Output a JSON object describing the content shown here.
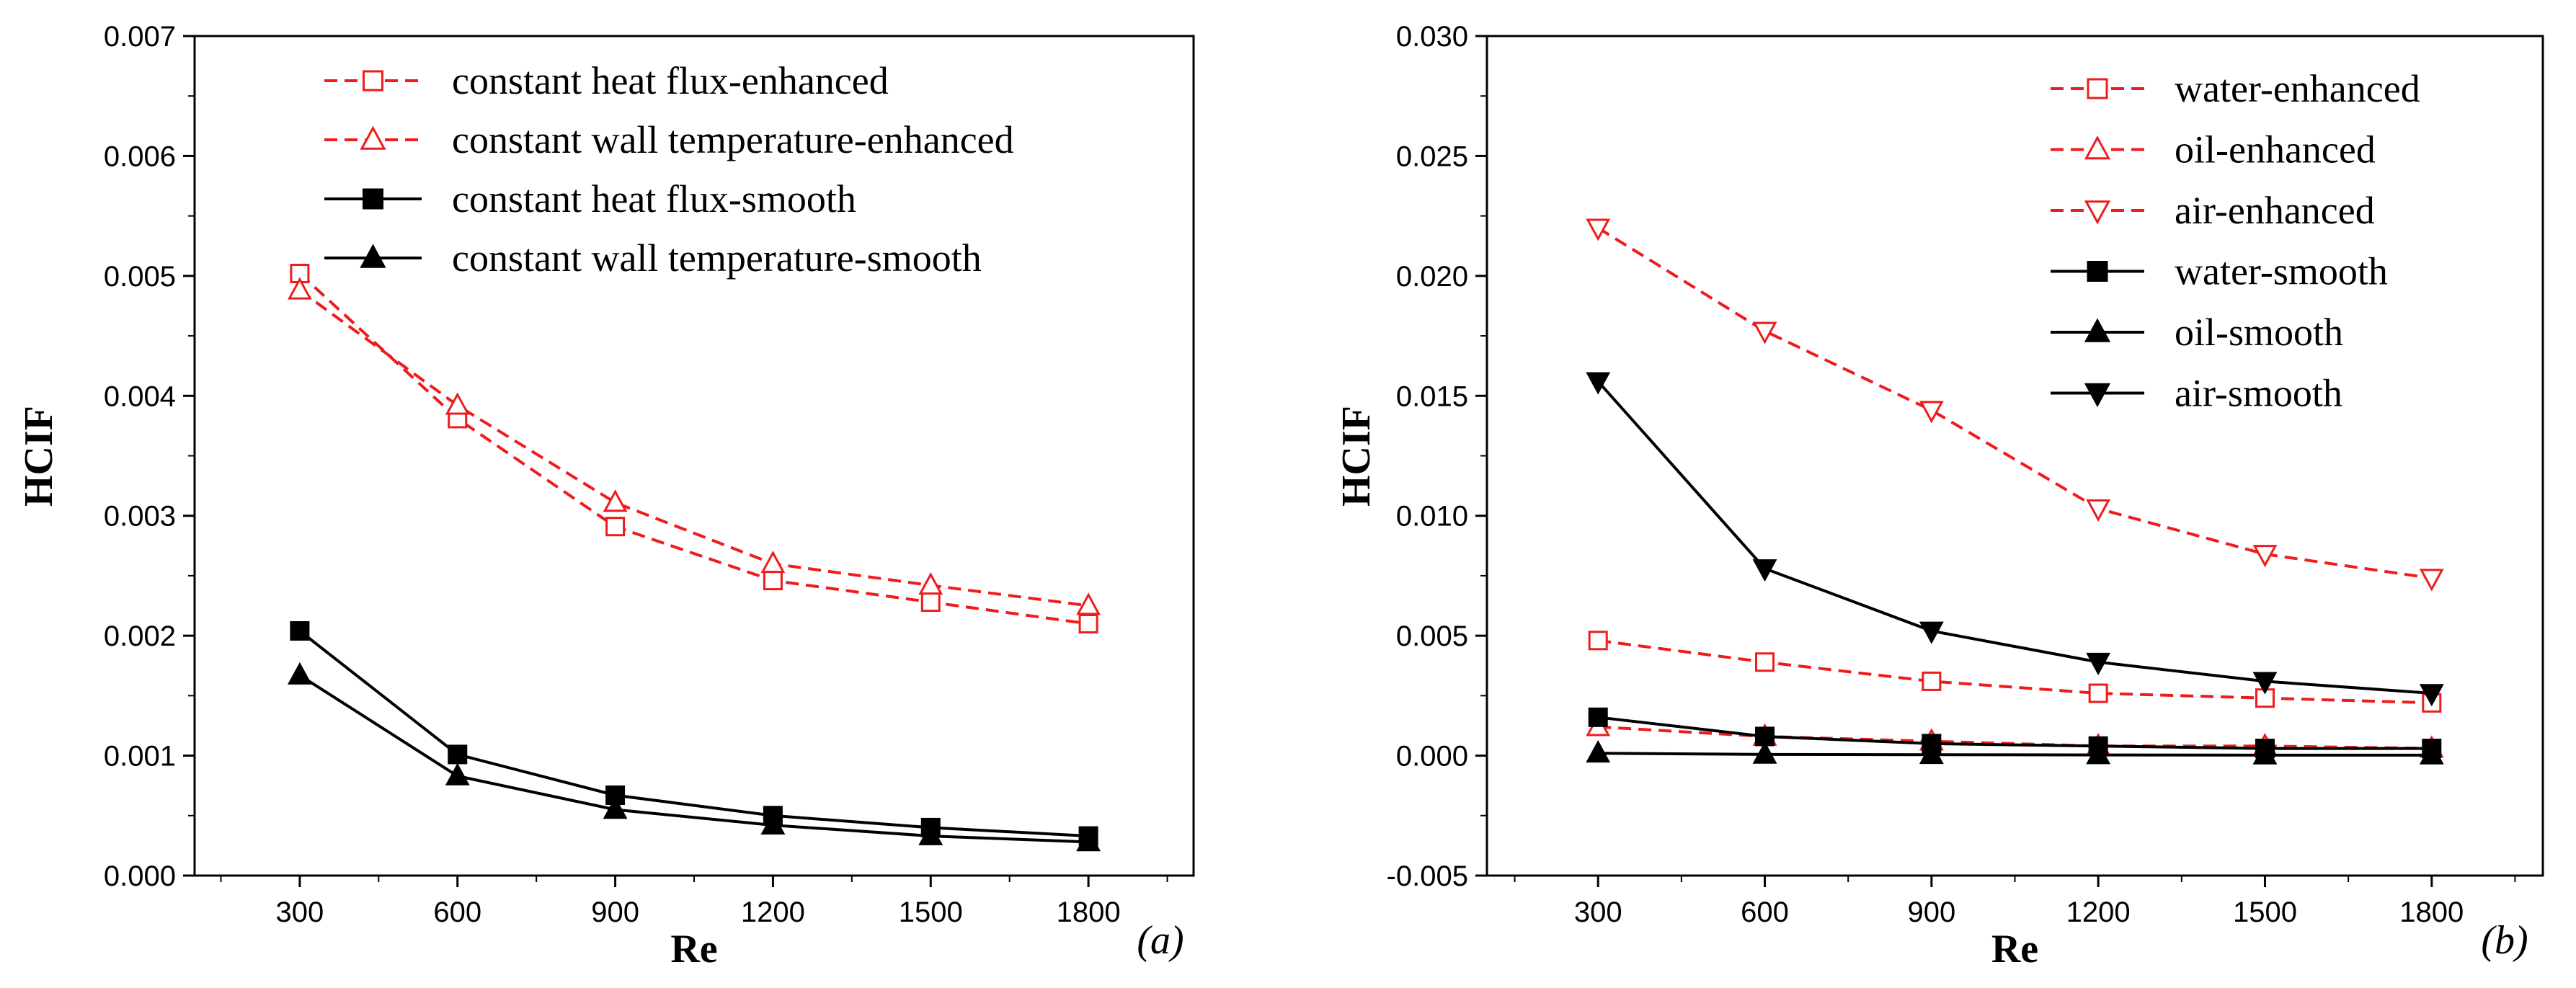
{
  "chart_data": [
    {
      "type": "line",
      "panel_label": "(a)",
      "xlabel": "Re",
      "ylabel": "HCIF",
      "x": [
        300,
        600,
        900,
        1200,
        1500,
        1800
      ],
      "xticks": [
        "300",
        "600",
        "900",
        "1200",
        "1500",
        "1800"
      ],
      "xlim": [
        100,
        2000
      ],
      "ylim": [
        0.0,
        0.007
      ],
      "yticks": [
        "0.000",
        "0.001",
        "0.002",
        "0.003",
        "0.004",
        "0.005",
        "0.006",
        "0.007"
      ],
      "legend_position": "top",
      "series": [
        {
          "name": "constant heat flux-enhanced",
          "color": "#ee1c1c",
          "dash": true,
          "marker": "square",
          "filled": false,
          "values": [
            0.00502,
            0.00381,
            0.00291,
            0.00246,
            0.00228,
            0.0021
          ]
        },
        {
          "name": "constant wall temperature-enhanced",
          "color": "#ee1c1c",
          "dash": true,
          "marker": "triangle-up",
          "filled": false,
          "values": [
            0.00488,
            0.00392,
            0.00311,
            0.0026,
            0.00242,
            0.00225
          ]
        },
        {
          "name": "constant heat flux-smooth",
          "color": "#000000",
          "dash": false,
          "marker": "square",
          "filled": true,
          "values": [
            0.00204,
            0.00101,
            0.00067,
            0.0005,
            0.0004,
            0.00033
          ]
        },
        {
          "name": "constant wall temperature-smooth",
          "color": "#000000",
          "dash": false,
          "marker": "triangle-up",
          "filled": true,
          "values": [
            0.00167,
            0.00083,
            0.00055,
            0.00042,
            0.00033,
            0.00028
          ]
        }
      ]
    },
    {
      "type": "line",
      "panel_label": "(b)",
      "xlabel": "Re",
      "ylabel": "HCIF",
      "x": [
        300,
        600,
        900,
        1200,
        1500,
        1800
      ],
      "xticks": [
        "300",
        "600",
        "900",
        "1200",
        "1500",
        "1800"
      ],
      "xlim": [
        100,
        2000
      ],
      "ylim": [
        -0.005,
        0.03
      ],
      "yticks": [
        "-0.005",
        "0.000",
        "0.005",
        "0.010",
        "0.015",
        "0.020",
        "0.025",
        "0.030"
      ],
      "legend_position": "top-right",
      "series": [
        {
          "name": "water-enhanced",
          "color": "#ee1c1c",
          "dash": true,
          "marker": "square",
          "filled": false,
          "values": [
            0.0048,
            0.0039,
            0.0031,
            0.0026,
            0.0024,
            0.0022
          ]
        },
        {
          "name": "oil-enhanced",
          "color": "#ee1c1c",
          "dash": true,
          "marker": "triangle-up",
          "filled": false,
          "values": [
            0.0012,
            0.0008,
            0.0006,
            0.0004,
            0.0004,
            0.0003
          ]
        },
        {
          "name": "air-enhanced",
          "color": "#ee1c1c",
          "dash": true,
          "marker": "triangle-down",
          "filled": false,
          "values": [
            0.022,
            0.0177,
            0.0144,
            0.0103,
            0.0084,
            0.0074
          ]
        },
        {
          "name": "water-smooth",
          "color": "#000000",
          "dash": false,
          "marker": "square",
          "filled": true,
          "values": [
            0.0016,
            0.0008,
            0.0005,
            0.0004,
            0.0003,
            0.0003
          ]
        },
        {
          "name": "oil-smooth",
          "color": "#000000",
          "dash": false,
          "marker": "triangle-up",
          "filled": true,
          "values": [
            0.0001,
            5e-05,
            4e-05,
            3e-05,
            2e-05,
            2e-05
          ]
        },
        {
          "name": "air-smooth",
          "color": "#000000",
          "dash": false,
          "marker": "triangle-down",
          "filled": true,
          "values": [
            0.0156,
            0.0078,
            0.0052,
            0.0039,
            0.0031,
            0.0026
          ]
        }
      ]
    }
  ]
}
